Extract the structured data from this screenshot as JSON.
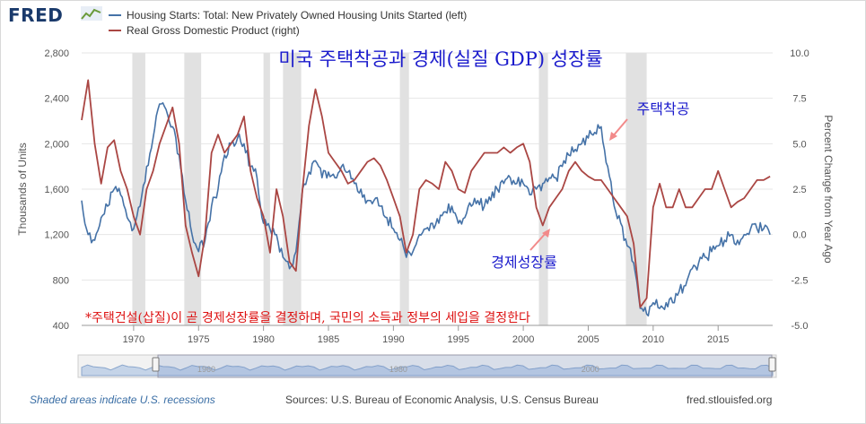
{
  "app": {
    "logo": "FRED"
  },
  "legend": [
    {
      "name": "Housing Starts: Total: New Privately Owned Housing Units Started (left)",
      "color": "#4572a7"
    },
    {
      "name": "Real Gross Domestic Product (right)",
      "color": "#aa4643"
    }
  ],
  "annotations": {
    "title": "미국 주택착공과 경제(실질 GDP) 성장률",
    "housing_label": "주택착공",
    "gdp_label": "경제성장률",
    "note": "*주택건설(삽질)이 곧 경제성장률을 결정하며, 국민의 소득과 정부의 세입을 결정한다"
  },
  "footer": {
    "recession_note": "Shaded areas indicate U.S. recessions",
    "sources": "Sources: U.S. Bureau of Economic Analysis, U.S. Census Bureau",
    "url": "fred.stlouisfed.org"
  },
  "navigator": {
    "labels": [
      "1960",
      "1980",
      "2000"
    ]
  },
  "chart_data": {
    "type": "line",
    "xlabel": "",
    "ylabel_left": "Thousands of Units",
    "ylabel_right": "Percent Change from Year Ago",
    "xlim": [
      1966.0,
      2019.2
    ],
    "ylim_left": [
      400,
      2800
    ],
    "ylim_right": [
      -5.0,
      10.0
    ],
    "x_ticks": [
      1970,
      1975,
      1980,
      1985,
      1990,
      1995,
      2000,
      2005,
      2010,
      2015
    ],
    "y_ticks_left": [
      "2,800",
      "2,400",
      "2,000",
      "1,600",
      "1,200",
      "800",
      "400"
    ],
    "y_tick_values_left": [
      2800,
      2400,
      2000,
      1600,
      1200,
      800,
      400
    ],
    "y_ticks_right": [
      "10.0",
      "7.5",
      "5.0",
      "2.5",
      "0.0",
      "-2.5",
      "-5.0"
    ],
    "y_tick_values_right": [
      10.0,
      7.5,
      5.0,
      2.5,
      0.0,
      -2.5,
      -5.0
    ],
    "recessions": [
      [
        1969.9,
        1970.9
      ],
      [
        1973.9,
        1975.2
      ],
      [
        1980.0,
        1980.5
      ],
      [
        1981.5,
        1982.9
      ],
      [
        1990.5,
        1991.2
      ],
      [
        2001.2,
        2001.9
      ],
      [
        2007.9,
        2009.5
      ]
    ],
    "series": [
      {
        "name": "Housing Starts: Total: New Privately Owned Housing Units Started (left)",
        "axis": "left",
        "color": "#4572a7",
        "x": [
          1966.0,
          1966.5,
          1967.0,
          1967.5,
          1968.0,
          1968.5,
          1969.0,
          1969.5,
          1970.0,
          1970.5,
          1971.0,
          1971.5,
          1972.0,
          1972.5,
          1973.0,
          1973.5,
          1974.0,
          1974.5,
          1975.0,
          1975.5,
          1976.0,
          1976.5,
          1977.0,
          1977.5,
          1978.0,
          1978.5,
          1979.0,
          1979.5,
          1980.0,
          1980.5,
          1981.0,
          1981.5,
          1982.0,
          1982.5,
          1983.0,
          1983.5,
          1984.0,
          1984.5,
          1985.0,
          1985.5,
          1986.0,
          1986.5,
          1987.0,
          1987.5,
          1988.0,
          1988.5,
          1989.0,
          1989.5,
          1990.0,
          1990.5,
          1991.0,
          1991.5,
          1992.0,
          1992.5,
          1993.0,
          1993.5,
          1994.0,
          1994.5,
          1995.0,
          1995.5,
          1996.0,
          1996.5,
          1997.0,
          1997.5,
          1998.0,
          1998.5,
          1999.0,
          1999.5,
          2000.0,
          2000.5,
          2001.0,
          2001.5,
          2002.0,
          2002.5,
          2003.0,
          2003.5,
          2004.0,
          2004.5,
          2005.0,
          2005.5,
          2006.0,
          2006.5,
          2007.0,
          2007.5,
          2008.0,
          2008.5,
          2009.0,
          2009.5,
          2010.0,
          2010.5,
          2011.0,
          2011.5,
          2012.0,
          2012.5,
          2013.0,
          2013.5,
          2014.0,
          2014.5,
          2015.0,
          2015.5,
          2016.0,
          2016.5,
          2017.0,
          2017.5,
          2018.0,
          2018.5,
          2019.0
        ],
        "values": [
          1500,
          1200,
          1150,
          1350,
          1450,
          1600,
          1550,
          1350,
          1250,
          1450,
          1800,
          2050,
          2350,
          2300,
          2150,
          1900,
          1500,
          1200,
          1050,
          1150,
          1450,
          1600,
          1900,
          2000,
          2050,
          2000,
          1800,
          1700,
          1300,
          1250,
          1200,
          1000,
          900,
          1050,
          1600,
          1750,
          1850,
          1700,
          1750,
          1700,
          1800,
          1750,
          1650,
          1600,
          1500,
          1500,
          1450,
          1350,
          1250,
          1150,
          1000,
          1050,
          1200,
          1250,
          1300,
          1300,
          1400,
          1450,
          1300,
          1350,
          1450,
          1500,
          1450,
          1500,
          1600,
          1650,
          1700,
          1650,
          1650,
          1550,
          1600,
          1650,
          1700,
          1700,
          1800,
          1900,
          1950,
          2000,
          2050,
          2100,
          2150,
          1800,
          1450,
          1300,
          1100,
          950,
          550,
          500,
          600,
          550,
          600,
          600,
          700,
          750,
          900,
          950,
          1000,
          1050,
          1100,
          1150,
          1200,
          1150,
          1200,
          1250,
          1250,
          1250,
          1200
        ]
      },
      {
        "name": "Real Gross Domestic Product (right)",
        "axis": "right",
        "color": "#aa4643",
        "x": [
          1966.0,
          1966.5,
          1967.0,
          1967.5,
          1968.0,
          1968.5,
          1969.0,
          1969.5,
          1970.0,
          1970.5,
          1971.0,
          1971.5,
          1972.0,
          1972.5,
          1973.0,
          1973.5,
          1974.0,
          1974.5,
          1975.0,
          1975.5,
          1976.0,
          1976.5,
          1977.0,
          1977.5,
          1978.0,
          1978.5,
          1979.0,
          1979.5,
          1980.0,
          1980.5,
          1981.0,
          1981.5,
          1982.0,
          1982.5,
          1983.0,
          1983.5,
          1984.0,
          1984.5,
          1985.0,
          1985.5,
          1986.0,
          1986.5,
          1987.0,
          1987.5,
          1988.0,
          1988.5,
          1989.0,
          1989.5,
          1990.0,
          1990.5,
          1991.0,
          1991.5,
          1992.0,
          1992.5,
          1993.0,
          1993.5,
          1994.0,
          1994.5,
          1995.0,
          1995.5,
          1996.0,
          1996.5,
          1997.0,
          1997.5,
          1998.0,
          1998.5,
          1999.0,
          1999.5,
          2000.0,
          2000.5,
          2001.0,
          2001.5,
          2002.0,
          2002.5,
          2003.0,
          2003.5,
          2004.0,
          2004.5,
          2005.0,
          2005.5,
          2006.0,
          2006.5,
          2007.0,
          2007.5,
          2008.0,
          2008.5,
          2009.0,
          2009.5,
          2010.0,
          2010.5,
          2011.0,
          2011.5,
          2012.0,
          2012.5,
          2013.0,
          2013.5,
          2014.0,
          2014.5,
          2015.0,
          2015.5,
          2016.0,
          2016.5,
          2017.0,
          2017.5,
          2018.0,
          2018.5,
          2019.0
        ],
        "values": [
          6.3,
          8.5,
          5.0,
          2.8,
          4.8,
          5.2,
          3.5,
          2.5,
          1.0,
          0.0,
          2.5,
          3.5,
          5.0,
          6.0,
          7.0,
          5.0,
          0.5,
          -1.0,
          -2.3,
          0.0,
          4.5,
          5.5,
          4.5,
          5.0,
          5.5,
          6.5,
          3.5,
          2.0,
          1.0,
          -1.0,
          2.5,
          1.0,
          -1.5,
          -2.0,
          2.5,
          6.0,
          8.0,
          6.5,
          4.5,
          4.0,
          3.5,
          2.8,
          3.0,
          3.5,
          4.0,
          4.2,
          3.8,
          3.0,
          2.0,
          1.0,
          -1.0,
          0.0,
          2.5,
          3.0,
          2.8,
          2.5,
          4.0,
          3.5,
          2.5,
          2.3,
          3.5,
          4.0,
          4.5,
          4.5,
          4.5,
          4.8,
          4.5,
          4.8,
          5.0,
          4.0,
          1.5,
          0.5,
          1.5,
          2.0,
          2.5,
          3.5,
          4.0,
          3.5,
          3.2,
          3.0,
          3.0,
          2.5,
          2.0,
          1.5,
          1.0,
          -0.5,
          -4.0,
          -3.5,
          1.5,
          2.8,
          1.5,
          1.5,
          2.5,
          1.5,
          1.5,
          2.0,
          2.5,
          2.5,
          3.5,
          2.5,
          1.5,
          1.8,
          2.0,
          2.5,
          3.0,
          3.0,
          3.2
        ]
      }
    ]
  }
}
